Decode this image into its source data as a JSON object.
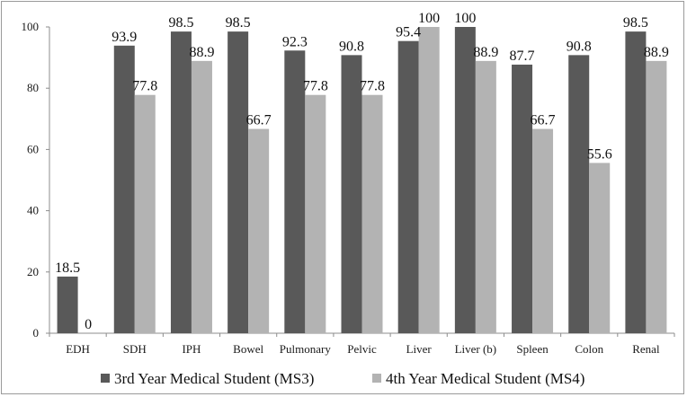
{
  "chart_data": {
    "type": "bar",
    "categories": [
      "EDH",
      "SDH",
      "IPH",
      "Bowel",
      "Pulmonary",
      "Pelvic",
      "Liver",
      "Liver (b)",
      "Spleen",
      "Colon",
      "Renal"
    ],
    "series": [
      {
        "name": "3rd Year Medical Student (MS3)",
        "color": "#595959",
        "values": [
          18.5,
          93.9,
          98.5,
          98.5,
          92.3,
          90.8,
          95.4,
          100,
          87.7,
          90.8,
          98.5
        ],
        "labels": [
          "18.5",
          "93.9",
          "98.5",
          "98.5",
          "92.3",
          "90.8",
          "95.4",
          "100",
          "87.7",
          "90.8",
          "98.5"
        ]
      },
      {
        "name": "4th Year Medical Student (MS4)",
        "color": "#b3b3b3",
        "values": [
          0,
          77.8,
          88.9,
          66.7,
          77.8,
          77.8,
          100,
          88.9,
          66.7,
          55.6,
          88.9
        ],
        "labels": [
          "0",
          "77.8",
          "88.9",
          "66.7",
          "77.8",
          "77.8",
          "100",
          "88.9",
          "66.7",
          "55.6",
          "88.9"
        ]
      }
    ],
    "yticks": [
      "0",
      "20",
      "40",
      "60",
      "80",
      "100"
    ],
    "ylim": [
      0,
      100
    ],
    "grid": false,
    "legend_position": "bottom"
  }
}
